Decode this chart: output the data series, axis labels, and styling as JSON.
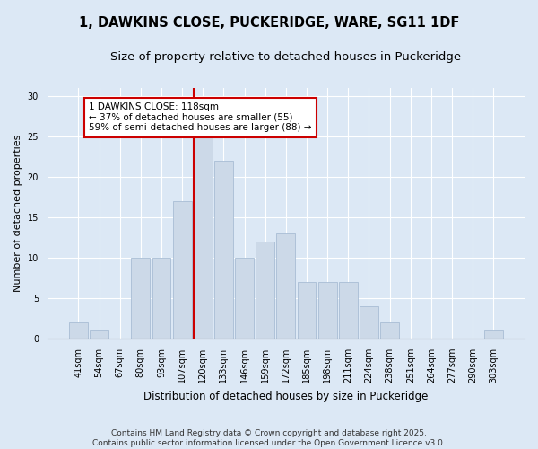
{
  "title1": "1, DAWKINS CLOSE, PUCKERIDGE, WARE, SG11 1DF",
  "title2": "Size of property relative to detached houses in Puckeridge",
  "xlabel": "Distribution of detached houses by size in Puckeridge",
  "ylabel": "Number of detached properties",
  "bar_labels": [
    "41sqm",
    "54sqm",
    "67sqm",
    "80sqm",
    "93sqm",
    "107sqm",
    "120sqm",
    "133sqm",
    "146sqm",
    "159sqm",
    "172sqm",
    "185sqm",
    "198sqm",
    "211sqm",
    "224sqm",
    "238sqm",
    "251sqm",
    "264sqm",
    "277sqm",
    "290sqm",
    "303sqm"
  ],
  "bar_values": [
    2,
    1,
    0,
    10,
    10,
    17,
    25,
    22,
    10,
    12,
    13,
    7,
    7,
    7,
    4,
    2,
    0,
    0,
    0,
    0,
    1
  ],
  "bar_color": "#ccd9e8",
  "bar_edgecolor": "#a8bdd4",
  "vline_color": "#cc0000",
  "annotation_text": "1 DAWKINS CLOSE: 118sqm\n← 37% of detached houses are smaller (55)\n59% of semi-detached houses are larger (88) →",
  "annotation_box_edgecolor": "#cc0000",
  "annotation_box_facecolor": "#ffffff",
  "ylim": [
    0,
    31
  ],
  "yticks": [
    0,
    5,
    10,
    15,
    20,
    25,
    30
  ],
  "plot_bg_color": "#dce8f5",
  "fig_bg_color": "#dce8f5",
  "footer": "Contains HM Land Registry data © Crown copyright and database right 2025.\nContains public sector information licensed under the Open Government Licence v3.0.",
  "title1_fontsize": 10.5,
  "title2_fontsize": 9.5,
  "xlabel_fontsize": 8.5,
  "ylabel_fontsize": 8,
  "tick_fontsize": 7,
  "annotation_fontsize": 7.5,
  "footer_fontsize": 6.5
}
